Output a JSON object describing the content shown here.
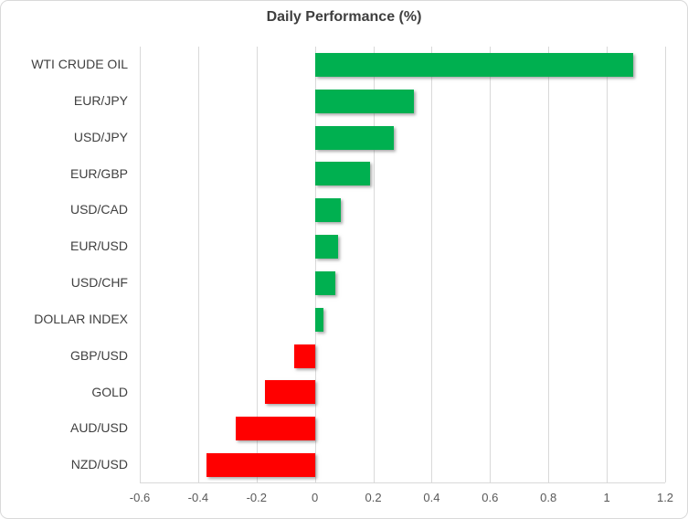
{
  "chart_data": {
    "type": "bar",
    "orientation": "horizontal",
    "title": "Daily Performance (%)",
    "categories": [
      "WTI CRUDE OIL",
      "EUR/JPY",
      "USD/JPY",
      "EUR/GBP",
      "USD/CAD",
      "EUR/USD",
      "USD/CHF",
      "DOLLAR INDEX",
      "GBP/USD",
      "GOLD",
      "AUD/USD",
      "NZD/USD"
    ],
    "values": [
      1.09,
      0.34,
      0.27,
      0.19,
      0.09,
      0.08,
      0.07,
      0.03,
      -0.07,
      -0.17,
      -0.27,
      -0.37
    ],
    "xlabel": "",
    "ylabel": "",
    "xlim": [
      -0.6,
      1.2
    ],
    "x_ticks": [
      -0.6,
      -0.4,
      -0.2,
      0,
      0.2,
      0.4,
      0.6,
      0.8,
      1,
      1.2
    ],
    "x_tick_labels": [
      "-0.6",
      "-0.4",
      "-0.2",
      "0",
      "0.2",
      "0.4",
      "0.6",
      "0.8",
      "1",
      "1.2"
    ],
    "grid": true,
    "legend": "none",
    "colors": {
      "positive_bar": "#00B050",
      "negative_bar": "#FF0000",
      "gridline": "#D9D9D9",
      "title_text": "#3F3F3F",
      "category_text": "#404040",
      "tick_text": "#595959",
      "frame_border": "#D9D9D9",
      "background": "#FFFFFF"
    }
  }
}
